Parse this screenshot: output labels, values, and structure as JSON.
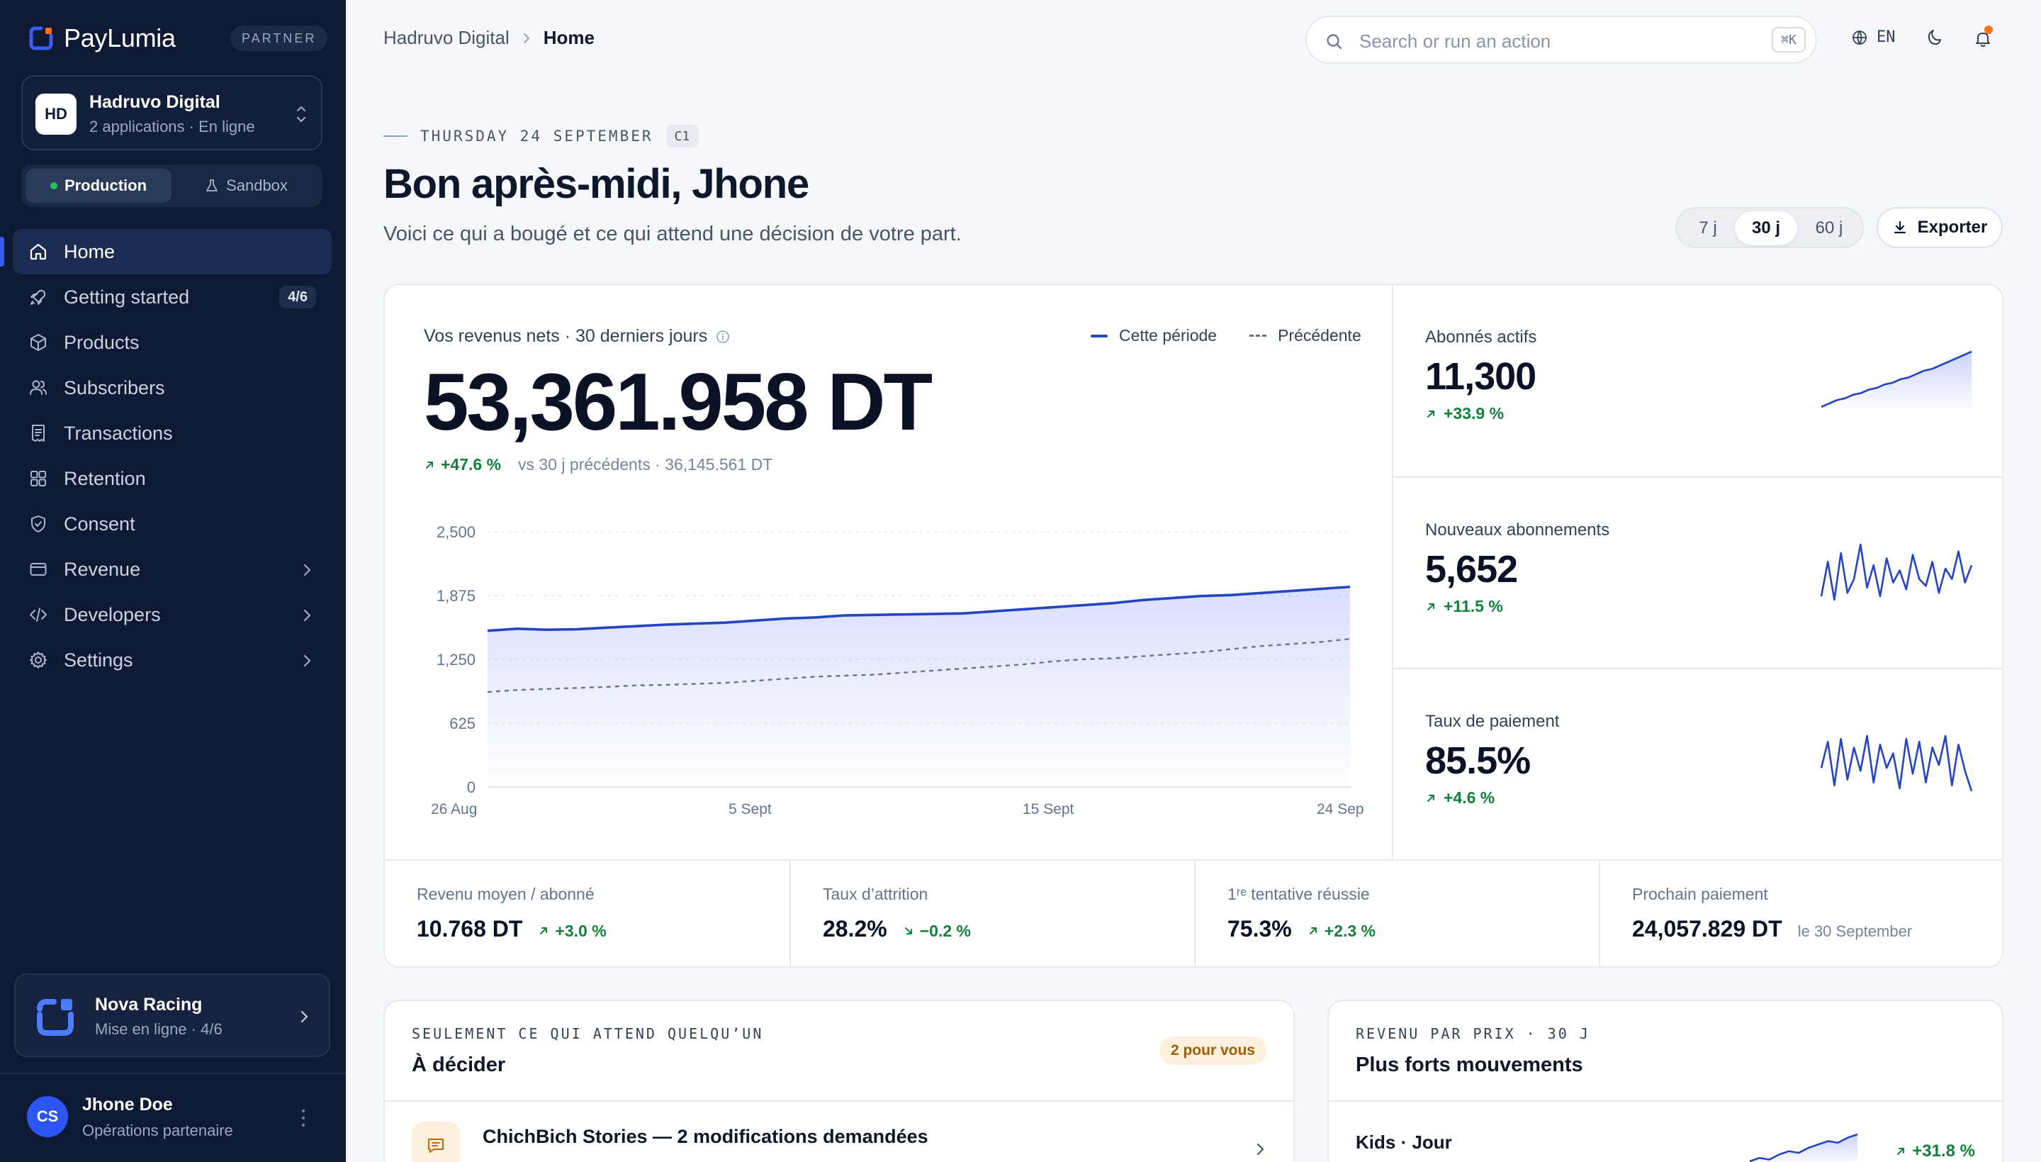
{
  "brand": {
    "name": "PayLumia",
    "badge": "PARTNER",
    "accent": "#3b5bfd"
  },
  "org": {
    "initials": "HD",
    "name": "Hadruvo Digital",
    "subtitle": "2 applications · En ligne"
  },
  "environment": {
    "production": "Production",
    "sandbox": "Sandbox",
    "selected": "Production"
  },
  "nav": {
    "items": [
      {
        "label": "Home",
        "icon": "home-icon",
        "active": true
      },
      {
        "label": "Getting started",
        "icon": "rocket-icon",
        "badge": "4/6"
      },
      {
        "label": "Products",
        "icon": "box-icon"
      },
      {
        "label": "Subscribers",
        "icon": "users-icon"
      },
      {
        "label": "Transactions",
        "icon": "receipt-icon"
      },
      {
        "label": "Retention",
        "icon": "grid-icon"
      },
      {
        "label": "Consent",
        "icon": "shield-icon"
      },
      {
        "label": "Revenue",
        "icon": "wallet-icon",
        "expandable": true
      },
      {
        "label": "Developers",
        "icon": "code-icon",
        "expandable": true
      },
      {
        "label": "Settings",
        "icon": "gear-icon",
        "expandable": true
      }
    ]
  },
  "project": {
    "name": "Nova Racing",
    "subtitle": "Mise en ligne · 4/6"
  },
  "user": {
    "initials": "CS",
    "name": "Jhone Doe",
    "role": "Opérations partenaire"
  },
  "topbar": {
    "breadcrumb_org": "Hadruvo Digital",
    "breadcrumb_current": "Home",
    "search_placeholder": "Search or run an action",
    "search_shortcut": "⌘K",
    "language": "EN"
  },
  "header": {
    "date": "THURSDAY 24 SEPTEMBER",
    "week": "C1",
    "greeting": "Bon après-midi, Jhone",
    "subtitle": "Voici ce qui a bougé et ce qui attend une décision de votre part.",
    "periods": [
      "7 j",
      "30 j",
      "60 j"
    ],
    "selected_period": "30 j",
    "export_label": "Exporter"
  },
  "revenue": {
    "title": "Vos revenus nets · 30 derniers jours",
    "value": "53,361.958 DT",
    "delta": "+47.6 %",
    "comparison": "vs 30 j précédents · 36,145.561 DT",
    "legend_current": "Cette période",
    "legend_previous": "Précédente"
  },
  "chart_data": {
    "type": "area",
    "x_labels": [
      "26 Aug",
      "5 Sept",
      "15 Sept",
      "24 Sep"
    ],
    "y_ticks": [
      "2,500",
      "1,875",
      "1,250",
      "625",
      "0"
    ],
    "ylim": [
      0,
      2500
    ],
    "series": [
      {
        "name": "Cette période",
        "color": "#2444c4",
        "values": [
          1530,
          1550,
          1540,
          1545,
          1560,
          1575,
          1590,
          1600,
          1610,
          1630,
          1650,
          1660,
          1680,
          1685,
          1690,
          1695,
          1700,
          1720,
          1740,
          1760,
          1780,
          1800,
          1830,
          1850,
          1870,
          1880,
          1900,
          1920,
          1940,
          1960
        ]
      },
      {
        "name": "Précédente",
        "color": "#64748b",
        "values": [
          930,
          950,
          960,
          970,
          980,
          995,
          1000,
          1010,
          1020,
          1040,
          1060,
          1080,
          1090,
          1100,
          1120,
          1140,
          1160,
          1180,
          1200,
          1230,
          1250,
          1260,
          1280,
          1300,
          1320,
          1350,
          1380,
          1400,
          1420,
          1450
        ]
      }
    ]
  },
  "kpis": [
    {
      "label": "Abonnés actifs",
      "value": "11,300",
      "delta": "+33.9 %",
      "spark_type": "area",
      "spark": [
        10,
        12,
        14,
        15,
        17,
        18,
        20,
        21,
        23,
        24,
        26,
        27,
        29,
        31,
        32,
        34,
        36,
        38,
        40,
        42
      ]
    },
    {
      "label": "Nouveaux abonnements",
      "value": "5,652",
      "delta": "+11.5 %",
      "spark_type": "line",
      "spark": [
        20,
        40,
        18,
        45,
        22,
        30,
        50,
        25,
        38,
        20,
        42,
        28,
        35,
        24,
        44,
        30,
        26,
        40,
        22,
        36,
        30,
        46,
        28,
        38
      ]
    },
    {
      "label": "Taux de paiement",
      "value": "85.5%",
      "delta": "+4.6 %",
      "spark_type": "line",
      "spark": [
        30,
        48,
        18,
        50,
        22,
        44,
        28,
        52,
        20,
        46,
        30,
        40,
        16,
        50,
        26,
        48,
        20,
        44,
        32,
        52,
        18,
        46,
        28,
        14
      ]
    }
  ],
  "stats": [
    {
      "label": "Revenu moyen / abonné",
      "value": "10.768 DT",
      "delta": "+3.0 %",
      "direction": "up"
    },
    {
      "label": "Taux d’attrition",
      "value": "28.2%",
      "delta": "−0.2 %",
      "direction": "down"
    },
    {
      "label": "1ʳᵉ tentative réussie",
      "value": "75.3%",
      "delta": "+2.3 %",
      "direction": "up"
    },
    {
      "label": "Prochain paiement",
      "value": "24,057.829 DT",
      "note": "le 30 September"
    }
  ],
  "decide": {
    "kicker": "SEULEMENT CE QUI ATTEND QUELQU’UN",
    "title": "À décider",
    "badge": "2 pour vous",
    "item_title": "ChichBich Stories — 2 modifications demandées"
  },
  "movers": {
    "kicker": "REVENU PAR PRIX · 30 J",
    "title": "Plus forts mouvements",
    "item_name": "Kids · Jour",
    "item_delta": "+31.8 %",
    "spark": [
      10,
      12,
      11,
      14,
      16,
      15,
      18,
      20,
      22,
      21,
      24,
      26
    ]
  }
}
